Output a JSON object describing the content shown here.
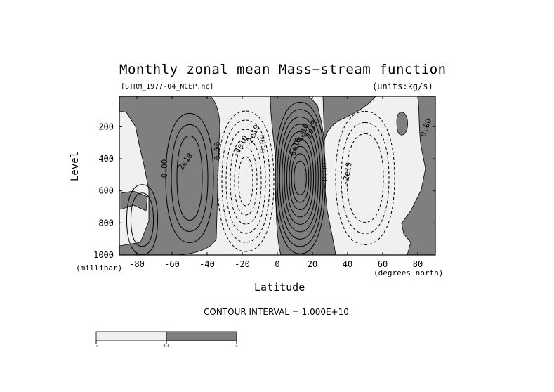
{
  "chart_data": {
    "type": "contour",
    "title": "Monthly zonal mean Mass−stream function",
    "file_label": "[STRM_1977-04_NCEP.nc]",
    "units_label": "(units:kg/s)",
    "xlabel": "Latitude",
    "x_unit": "(degrees_north)",
    "ylabel": "Level",
    "y_unit": "(millibar)",
    "xlim": [
      -90,
      90
    ],
    "ylim": [
      1000,
      10
    ],
    "y_reversed": true,
    "x_ticks": [
      {
        "value": -80,
        "label": "-80"
      },
      {
        "value": -60,
        "label": "-60"
      },
      {
        "value": -40,
        "label": "-40"
      },
      {
        "value": -20,
        "label": "-20"
      },
      {
        "value": 0,
        "label": "0"
      },
      {
        "value": 20,
        "label": "20"
      },
      {
        "value": 40,
        "label": "40"
      },
      {
        "value": 60,
        "label": "60"
      },
      {
        "value": 80,
        "label": "80"
      }
    ],
    "y_ticks": [
      {
        "value": 200,
        "label": "200"
      },
      {
        "value": 400,
        "label": "400"
      },
      {
        "value": 600,
        "label": "600"
      },
      {
        "value": 800,
        "label": "800"
      },
      {
        "value": 1000,
        "label": "1000"
      }
    ],
    "contour_interval_text": "CONTOUR INTERVAL = 1.000E+10",
    "contour_interval": 10000000000.0,
    "shading": {
      "negative_color": "#f0f0f0",
      "positive_color": "#7f7f7f"
    },
    "cells": [
      {
        "name": "SH polar",
        "lat": -77,
        "lev": 780,
        "sign": 1,
        "levels": 2
      },
      {
        "name": "SH mid-latitude",
        "lat": -50,
        "lev": 520,
        "sign": 1,
        "levels": 3
      },
      {
        "name": "SH tropical",
        "lat": -18,
        "lev": 540,
        "sign": -1,
        "levels": 6
      },
      {
        "name": "NH tropical",
        "lat": 13,
        "lev": 520,
        "sign": 1,
        "levels": 9
      },
      {
        "name": "NH mid-latitude",
        "lat": 50,
        "lev": 520,
        "sign": -1,
        "levels": 3
      }
    ],
    "contour_labels": [
      "0.00",
      "2e10",
      "0.00",
      "-4e10",
      "-2e10",
      "0.00",
      "6e10",
      "4e10",
      "2e10",
      "0.00",
      "-2e10",
      "0.00"
    ],
    "colorbar": {
      "labels": [
        "-∞",
        "0.0",
        "∞"
      ]
    }
  }
}
